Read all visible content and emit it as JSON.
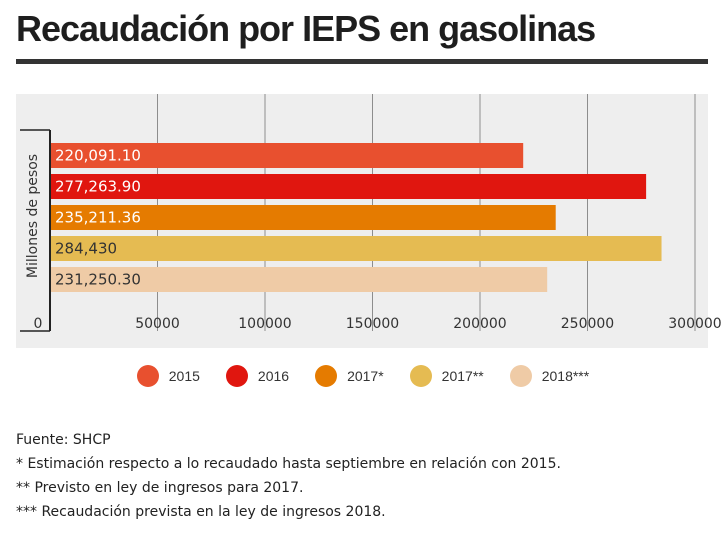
{
  "title": "Recaudación por IEPS en gasolinas",
  "chart_data": {
    "type": "bar",
    "orientation": "horizontal",
    "ylabel": "Millones de pesos",
    "xlim": [
      0,
      300000
    ],
    "xticks": [
      0,
      50000,
      100000,
      150000,
      200000,
      250000,
      300000
    ],
    "grid": true,
    "legend_position": "bottom",
    "series": [
      {
        "name": "2015",
        "value": 220091.1,
        "label": "220,091.10",
        "color": "#e8502f"
      },
      {
        "name": "2016",
        "value": 277263.9,
        "label": "277,263.90",
        "color": "#e0160f"
      },
      {
        "name": "2017*",
        "value": 235211.36,
        "label": "235,211.36",
        "color": "#e57b00"
      },
      {
        "name": "2017**",
        "value": 284430,
        "label": "284,430",
        "color": "#e5bb52"
      },
      {
        "name": "2018***",
        "value": 231250.3,
        "label": "231,250.30",
        "color": "#efcba6"
      }
    ]
  },
  "notes": [
    "Fuente: SHCP",
    "* Estimación respecto a lo recaudado hasta septiembre en relación con 2015.",
    "** Previsto en ley de ingresos para 2017.",
    "*** Recaudación prevista en la ley de ingresos 2018."
  ]
}
